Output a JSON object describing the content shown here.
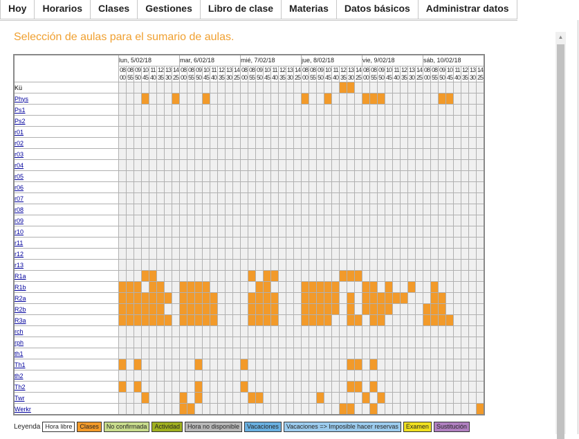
{
  "nav": [
    "Hoy",
    "Horarios",
    "Clases",
    "Gestiones",
    "Libro de clase",
    "Materias",
    "Datos básicos",
    "Administrar datos"
  ],
  "page_title": "Selección de aulas para el sumario de aulas.",
  "colors": {
    "occupied": "#f29a2a",
    "free": "#f0f0f0",
    "accent": "#f0a030",
    "link": "#00009c"
  },
  "days": [
    {
      "label": "lun, 5/02/18",
      "periods": [
        "08:00",
        "08:55",
        "09:50",
        "10:45",
        "11:40",
        "12:35",
        "13:30",
        "14:25"
      ]
    },
    {
      "label": "mar, 6/02/18",
      "periods": [
        "08:00",
        "08:55",
        "09:50",
        "10:45",
        "11:40",
        "12:35",
        "13:30",
        "14:25"
      ]
    },
    {
      "label": "mié, 7/02/18",
      "periods": [
        "08:00",
        "08:55",
        "09:50",
        "10:45",
        "11:40",
        "12:35",
        "13:30",
        "14:25"
      ]
    },
    {
      "label": "jue, 8/02/18",
      "periods": [
        "08:00",
        "08:55",
        "09:50",
        "10:45",
        "11:40",
        "12:35",
        "13:30",
        "14:25"
      ]
    },
    {
      "label": "vie, 9/02/18",
      "periods": [
        "08:00",
        "08:55",
        "09:50",
        "10:45",
        "11:40",
        "12:35",
        "13:30",
        "14:25"
      ]
    },
    {
      "label": "sáb, 10/02/18",
      "periods": [
        "08:00",
        "08:55",
        "09:50",
        "10:45",
        "11:40",
        "12:35",
        "13:30",
        "14:25"
      ]
    }
  ],
  "rooms": [
    {
      "name": "Kü",
      "link": false,
      "occ": [
        [],
        [],
        [],
        [
          5,
          6
        ],
        [],
        []
      ]
    },
    {
      "name": "Phys",
      "link": true,
      "occ": [
        [
          3,
          7
        ],
        [
          3
        ],
        [],
        [
          0,
          3
        ],
        [
          0,
          1,
          2
        ],
        [
          2,
          3
        ]
      ]
    },
    {
      "name": "Ps1",
      "link": true,
      "occ": [
        [],
        [],
        [],
        [],
        [],
        []
      ]
    },
    {
      "name": "Ps2",
      "link": true,
      "occ": [
        [],
        [],
        [],
        [],
        [],
        []
      ]
    },
    {
      "name": "r01",
      "link": true,
      "occ": [
        [],
        [],
        [],
        [],
        [],
        []
      ]
    },
    {
      "name": "r02",
      "link": true,
      "occ": [
        [],
        [],
        [],
        [],
        [],
        []
      ]
    },
    {
      "name": "r03",
      "link": true,
      "occ": [
        [],
        [],
        [],
        [],
        [],
        []
      ]
    },
    {
      "name": "r04",
      "link": true,
      "occ": [
        [],
        [],
        [],
        [],
        [],
        []
      ]
    },
    {
      "name": "r05",
      "link": true,
      "occ": [
        [],
        [],
        [],
        [],
        [],
        []
      ]
    },
    {
      "name": "r06",
      "link": true,
      "occ": [
        [],
        [],
        [],
        [],
        [],
        []
      ]
    },
    {
      "name": "r07",
      "link": true,
      "occ": [
        [],
        [],
        [],
        [],
        [],
        []
      ]
    },
    {
      "name": "r08",
      "link": true,
      "occ": [
        [],
        [],
        [],
        [],
        [],
        []
      ]
    },
    {
      "name": "r09",
      "link": true,
      "occ": [
        [],
        [],
        [],
        [],
        [],
        []
      ]
    },
    {
      "name": "r10",
      "link": true,
      "occ": [
        [],
        [],
        [],
        [],
        [],
        []
      ]
    },
    {
      "name": "r11",
      "link": true,
      "occ": [
        [],
        [],
        [],
        [],
        [],
        []
      ]
    },
    {
      "name": "r12",
      "link": true,
      "occ": [
        [],
        [],
        [],
        [],
        [],
        []
      ]
    },
    {
      "name": "r13",
      "link": true,
      "occ": [
        [],
        [],
        [],
        [],
        [],
        []
      ]
    },
    {
      "name": "R1a",
      "link": true,
      "occ": [
        [
          3,
          4
        ],
        [],
        [
          1,
          3,
          4
        ],
        [
          5,
          6,
          7
        ],
        [],
        []
      ]
    },
    {
      "name": "R1b",
      "link": true,
      "occ": [
        [
          0,
          1,
          2,
          4,
          5
        ],
        [
          0,
          1,
          2,
          3
        ],
        [
          2,
          3
        ],
        [
          0,
          1,
          2,
          3,
          4
        ],
        [
          0,
          1,
          3,
          6
        ],
        [
          1
        ]
      ]
    },
    {
      "name": "R2a",
      "link": true,
      "occ": [
        [
          0,
          1,
          2,
          3,
          4,
          5,
          6
        ],
        [
          0,
          1,
          2,
          3,
          4
        ],
        [
          1,
          2,
          3,
          4
        ],
        [
          0,
          1,
          2,
          3,
          4,
          6
        ],
        [
          0,
          1,
          2,
          3,
          4,
          5
        ],
        [
          1,
          2
        ]
      ]
    },
    {
      "name": "R2b",
      "link": true,
      "occ": [
        [
          0,
          1,
          2,
          3,
          4,
          5
        ],
        [
          0,
          1,
          2,
          3,
          4
        ],
        [
          1,
          2,
          3,
          4
        ],
        [
          0,
          1,
          2,
          3,
          4,
          6
        ],
        [
          0,
          1,
          2,
          3
        ],
        [
          0,
          1,
          2
        ]
      ]
    },
    {
      "name": "R3a",
      "link": true,
      "occ": [
        [
          0,
          1,
          2,
          3,
          4,
          5,
          6
        ],
        [
          0,
          1,
          2,
          3,
          4
        ],
        [
          1,
          2,
          3,
          4
        ],
        [
          0,
          1,
          2,
          3,
          6,
          7
        ],
        [
          1,
          2
        ],
        [
          0,
          1,
          2,
          3
        ]
      ]
    },
    {
      "name": "rch",
      "link": true,
      "occ": [
        [],
        [],
        [],
        [],
        [],
        []
      ]
    },
    {
      "name": "rph",
      "link": true,
      "occ": [
        [],
        [],
        [],
        [],
        [],
        []
      ]
    },
    {
      "name": "th1",
      "link": true,
      "occ": [
        [],
        [],
        [],
        [],
        [],
        []
      ]
    },
    {
      "name": "Th1",
      "link": true,
      "occ": [
        [
          0,
          2
        ],
        [
          2
        ],
        [
          0
        ],
        [
          6,
          7
        ],
        [
          1
        ],
        []
      ]
    },
    {
      "name": "th2",
      "link": true,
      "occ": [
        [],
        [],
        [],
        [],
        [],
        []
      ]
    },
    {
      "name": "Th2",
      "link": true,
      "occ": [
        [
          0,
          2
        ],
        [
          2
        ],
        [
          0
        ],
        [
          6,
          7
        ],
        [
          1
        ],
        []
      ]
    },
    {
      "name": "Twr",
      "link": true,
      "occ": [
        [
          3
        ],
        [
          0,
          2
        ],
        [
          1,
          2
        ],
        [
          2
        ],
        [
          0,
          2
        ],
        []
      ]
    },
    {
      "name": "Werkr",
      "link": true,
      "occ": [
        [],
        [
          0,
          1
        ],
        [],
        [
          5,
          6
        ],
        [
          1
        ],
        [
          7
        ]
      ]
    }
  ],
  "legend_label": "Leyenda",
  "legend": [
    {
      "label": "Hora libre",
      "bg": "#ffffff",
      "fg": "#222222"
    },
    {
      "label": "Clases",
      "bg": "#f29a2a",
      "fg": "#222222"
    },
    {
      "label": "No confirmada",
      "bg": "#c8dc8c",
      "fg": "#222222"
    },
    {
      "label": "Actividad",
      "bg": "#a0b020",
      "fg": "#222222"
    },
    {
      "label": "Hora no disponible",
      "bg": "#b8b8b8",
      "fg": "#222222"
    },
    {
      "label": "Vacaciones",
      "bg": "#6ab0e0",
      "fg": "#222222"
    },
    {
      "label": "Vacaciones => Imposible hacer reservas",
      "bg": "#9cccee",
      "fg": "#222222"
    },
    {
      "label": "Examen",
      "bg": "#f0e020",
      "fg": "#222222"
    },
    {
      "label": "Sustitución",
      "bg": "#b080c0",
      "fg": "#222222"
    }
  ]
}
